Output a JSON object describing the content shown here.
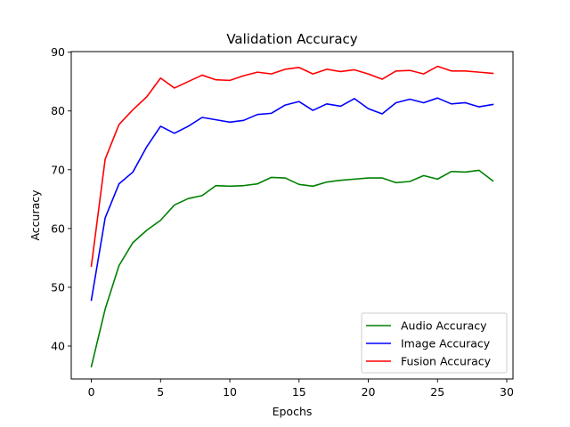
{
  "chart_data": {
    "type": "line",
    "title": "Validation Accuracy",
    "xlabel": "Epochs",
    "ylabel": "Accuracy",
    "xlim": [
      -1.45,
      30.45
    ],
    "ylim": [
      34.4,
      90.1
    ],
    "x_ticks": [
      0,
      5,
      10,
      15,
      20,
      25,
      30
    ],
    "y_ticks": [
      40,
      50,
      60,
      70,
      80,
      90
    ],
    "x_tick_labels": [
      "0",
      "5",
      "10",
      "15",
      "20",
      "25",
      "30"
    ],
    "y_tick_labels": [
      "40",
      "50",
      "60",
      "70",
      "80",
      "90"
    ],
    "grid": false,
    "legend_position": "lower-right",
    "x": [
      0,
      1,
      2,
      3,
      4,
      5,
      6,
      7,
      8,
      9,
      10,
      11,
      12,
      13,
      14,
      15,
      16,
      17,
      18,
      19,
      20,
      21,
      22,
      23,
      24,
      25,
      26,
      27,
      28,
      29
    ],
    "series": [
      {
        "name": "Audio Accuracy",
        "color": "#008000",
        "values": [
          36.5,
          46.3,
          53.7,
          57.6,
          59.7,
          61.4,
          64.0,
          65.1,
          65.6,
          67.3,
          67.2,
          67.3,
          67.6,
          68.7,
          68.6,
          67.5,
          67.2,
          67.9,
          68.2,
          68.4,
          68.6,
          68.6,
          67.8,
          68.0,
          69.0,
          68.4,
          69.7,
          69.6,
          69.9,
          68.1
        ]
      },
      {
        "name": "Image Accuracy",
        "color": "#0000ff",
        "values": [
          47.8,
          61.8,
          67.6,
          69.6,
          73.9,
          77.4,
          76.2,
          77.4,
          78.9,
          78.5,
          78.1,
          78.4,
          79.4,
          79.6,
          81.0,
          81.6,
          80.1,
          81.2,
          80.8,
          82.1,
          80.4,
          79.5,
          81.4,
          82.0,
          81.4,
          82.2,
          81.2,
          81.4,
          80.7,
          81.1
        ]
      },
      {
        "name": "Fusion Accuracy",
        "color": "#ff0000",
        "values": [
          53.6,
          71.8,
          77.7,
          80.2,
          82.4,
          85.6,
          83.9,
          85.0,
          86.1,
          85.3,
          85.2,
          86.0,
          86.6,
          86.3,
          87.1,
          87.4,
          86.3,
          87.1,
          86.7,
          87.0,
          86.3,
          85.4,
          86.8,
          86.9,
          86.3,
          87.6,
          86.8,
          86.8,
          86.6,
          86.4
        ]
      }
    ]
  }
}
